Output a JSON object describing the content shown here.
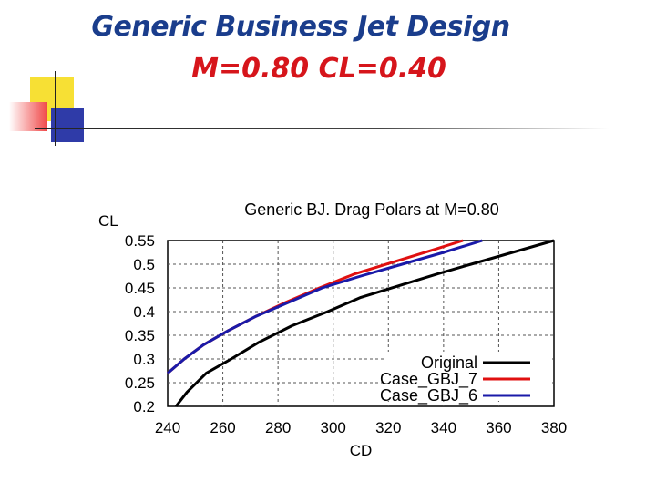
{
  "slide": {
    "title_line1": "Generic Business Jet Design",
    "title_line2": "M=0.80  CL=0.40",
    "colors": {
      "title_blue": "#1a3d8c",
      "title_red": "#d6151b",
      "deco_yellow": "#f7e034",
      "deco_blue": "#2f3ba8",
      "deco_red": "#f04848"
    }
  },
  "chart_data": {
    "type": "line",
    "title": "Generic BJ. Drag Polars at M=0.80",
    "xlabel": "CD",
    "ylabel": "CL",
    "xlim": [
      240,
      380
    ],
    "ylim": [
      0.2,
      0.55
    ],
    "xticks": [
      240,
      260,
      280,
      300,
      320,
      340,
      360,
      380
    ],
    "yticks": [
      0.2,
      0.25,
      0.3,
      0.35,
      0.4,
      0.45,
      0.5,
      0.55
    ],
    "xtick_labels": [
      "240",
      "260",
      "280",
      "300",
      "320",
      "340",
      "360",
      "380"
    ],
    "ytick_labels": [
      "0.2",
      "0.25",
      "0.3",
      "0.35",
      "0.4",
      "0.45",
      "0.5",
      "0.55"
    ],
    "grid": true,
    "legend_position": "bottom-right",
    "series": [
      {
        "name": "Original",
        "color": "#000000",
        "x": [
          243,
          247,
          254,
          263,
          273,
          285,
          298,
          310,
          324,
          338,
          350,
          365,
          380
        ],
        "y": [
          0.2,
          0.23,
          0.27,
          0.3,
          0.335,
          0.37,
          0.4,
          0.43,
          0.455,
          0.48,
          0.5,
          0.525,
          0.55
        ]
      },
      {
        "name": "Case_GBJ_7",
        "color": "#e01010",
        "x": [
          240,
          246,
          253,
          262,
          272,
          283,
          295,
          308,
          322,
          336,
          347
        ],
        "y": [
          0.27,
          0.3,
          0.33,
          0.36,
          0.39,
          0.42,
          0.45,
          0.48,
          0.505,
          0.53,
          0.55
        ]
      },
      {
        "name": "Case_GBJ_6",
        "color": "#1a1aa8",
        "x": [
          240,
          246,
          253,
          262,
          272,
          284,
          296,
          310,
          325,
          340,
          354
        ],
        "y": [
          0.27,
          0.3,
          0.33,
          0.36,
          0.39,
          0.42,
          0.45,
          0.475,
          0.5,
          0.525,
          0.55
        ]
      }
    ]
  }
}
